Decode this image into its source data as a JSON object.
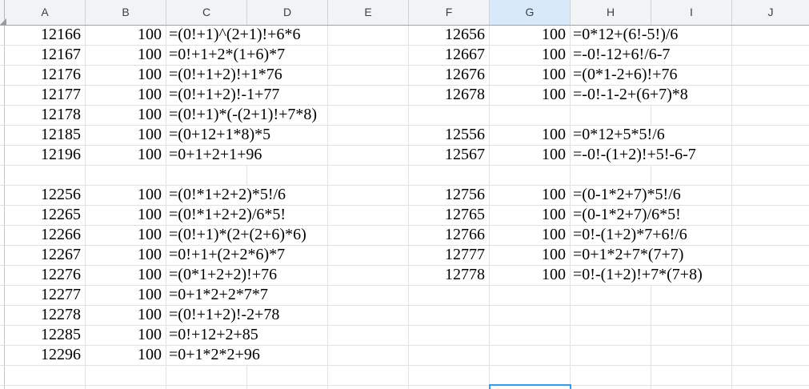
{
  "sheet": {
    "column_headers": [
      "A",
      "B",
      "C",
      "D",
      "E",
      "F",
      "G",
      "H",
      "I",
      "J"
    ],
    "selected_column": "G",
    "rows": [
      {
        "a": "12166",
        "b": "100",
        "c": "=(0!+1)^(2+1)!+6*6",
        "f": "12656",
        "g": "100",
        "h": "=0*12+(6!-5!)/6"
      },
      {
        "a": "12167",
        "b": "100",
        "c": "=0!+1+2*(1+6)*7",
        "f": "12667",
        "g": "100",
        "h": "=-0!-12+6!/6-7"
      },
      {
        "a": "12176",
        "b": "100",
        "c": "=(0!+1+2)!+1*76",
        "f": "12676",
        "g": "100",
        "h": "=(0*1-2+6)!+76"
      },
      {
        "a": "12177",
        "b": "100",
        "c": "=(0!+1+2)!-1+77",
        "f": "12678",
        "g": "100",
        "h": "=-0!-1-2+(6+7)*8"
      },
      {
        "a": "12178",
        "b": "100",
        "c": "=(0!+1)*(-(2+1)!+7*8)",
        "f": "",
        "g": "",
        "h": ""
      },
      {
        "a": "12185",
        "b": "100",
        "c": "=(0+12+1*8)*5",
        "f": "12556",
        "g": "100",
        "h": "=0*12+5*5!/6"
      },
      {
        "a": "12196",
        "b": "100",
        "c": "=0+1+2+1+96",
        "f": "12567",
        "g": "100",
        "h": "=-0!-(1+2)!+5!-6-7"
      },
      {
        "a": "",
        "b": "",
        "c": "",
        "f": "",
        "g": "",
        "h": ""
      },
      {
        "a": "12256",
        "b": "100",
        "c": "=(0!*1+2+2)*5!/6",
        "f": "12756",
        "g": "100",
        "h": "=(0-1*2+7)*5!/6"
      },
      {
        "a": "12265",
        "b": "100",
        "c": "=(0!*1+2+2)/6*5!",
        "f": "12765",
        "g": "100",
        "h": "=(0-1*2+7)/6*5!"
      },
      {
        "a": "12266",
        "b": "100",
        "c": "=(0!+1)*(2+(2+6)*6)",
        "f": "12766",
        "g": "100",
        "h": "=0!-(1+2)*7+6!/6"
      },
      {
        "a": "12267",
        "b": "100",
        "c": "=0!+1+(2+2*6)*7",
        "f": "12777",
        "g": "100",
        "h": "=0+1*2+7*(7+7)"
      },
      {
        "a": "12276",
        "b": "100",
        "c": "=(0*1+2+2)!+76",
        "f": "12778",
        "g": "100",
        "h": "=0!-(1+2)!+7*(7+8)"
      },
      {
        "a": "12277",
        "b": "100",
        "c": "=0+1*2+2*7*7",
        "f": "",
        "g": "",
        "h": ""
      },
      {
        "a": "12278",
        "b": "100",
        "c": "=(0!+1+2)!-2+78",
        "f": "",
        "g": "",
        "h": ""
      },
      {
        "a": "12285",
        "b": "100",
        "c": "=0!+12+2+85",
        "f": "",
        "g": "",
        "h": ""
      },
      {
        "a": "12296",
        "b": "100",
        "c": "=0+1*2*2+96",
        "f": "",
        "g": "",
        "h": ""
      },
      {
        "a": "",
        "b": "",
        "c": "",
        "f": "",
        "g": "",
        "h": ""
      }
    ]
  },
  "selection": {
    "column": "G"
  },
  "colors": {
    "selection_blue": "#2e9cf4",
    "selected_header_bg": "#d8eafa",
    "header_bg": "#f2f3f4",
    "gridline": "#e2e2e2"
  }
}
